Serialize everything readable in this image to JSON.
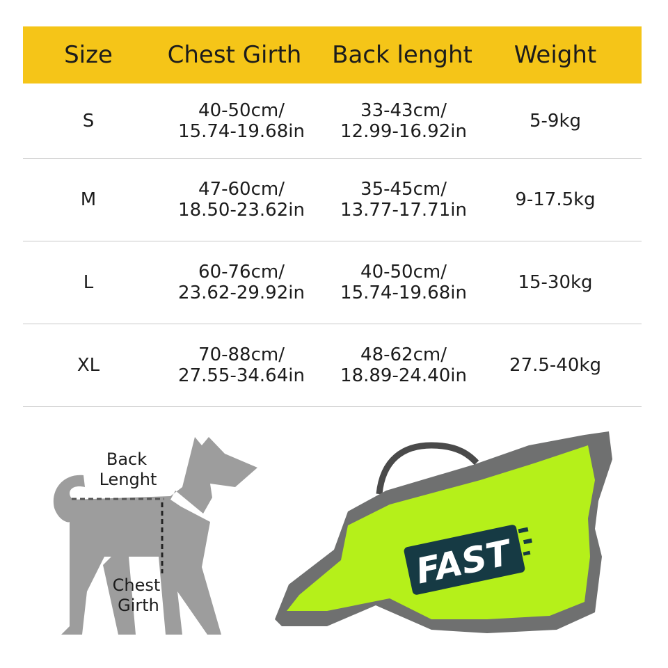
{
  "table": {
    "headers": [
      "Size",
      "Chest Girth",
      "Back lenght",
      "Weight"
    ],
    "rows": [
      {
        "size": "S",
        "chest": [
          "40-50cm/",
          "15.74-19.68in"
        ],
        "back": [
          "33-43cm/",
          "12.99-16.92in"
        ],
        "weight": "5-9kg"
      },
      {
        "size": "M",
        "chest": [
          "47-60cm/",
          "18.50-23.62in"
        ],
        "back": [
          "35-45cm/",
          "13.77-17.71in"
        ],
        "weight": "9-17.5kg"
      },
      {
        "size": "L",
        "chest": [
          "60-76cm/",
          "23.62-29.92in"
        ],
        "back": [
          "40-50cm/",
          "15.74-19.68in"
        ],
        "weight": "15-30kg"
      },
      {
        "size": "XL",
        "chest": [
          "70-88cm/",
          "27.55-34.64in"
        ],
        "back": [
          "48-62cm/",
          "18.89-24.40in"
        ],
        "weight": "27.5-40kg"
      }
    ]
  },
  "diagram": {
    "back_label": [
      "Back",
      "Lenght"
    ],
    "chest_label": [
      "Chest",
      "Girth"
    ]
  },
  "product": {
    "logo_text": "FAST"
  },
  "colors": {
    "header": "#F5C518",
    "dog": "#9d9d9d",
    "vest": "#B5F01A",
    "vest_trim": "#6f7070",
    "logo": "#163a44"
  }
}
